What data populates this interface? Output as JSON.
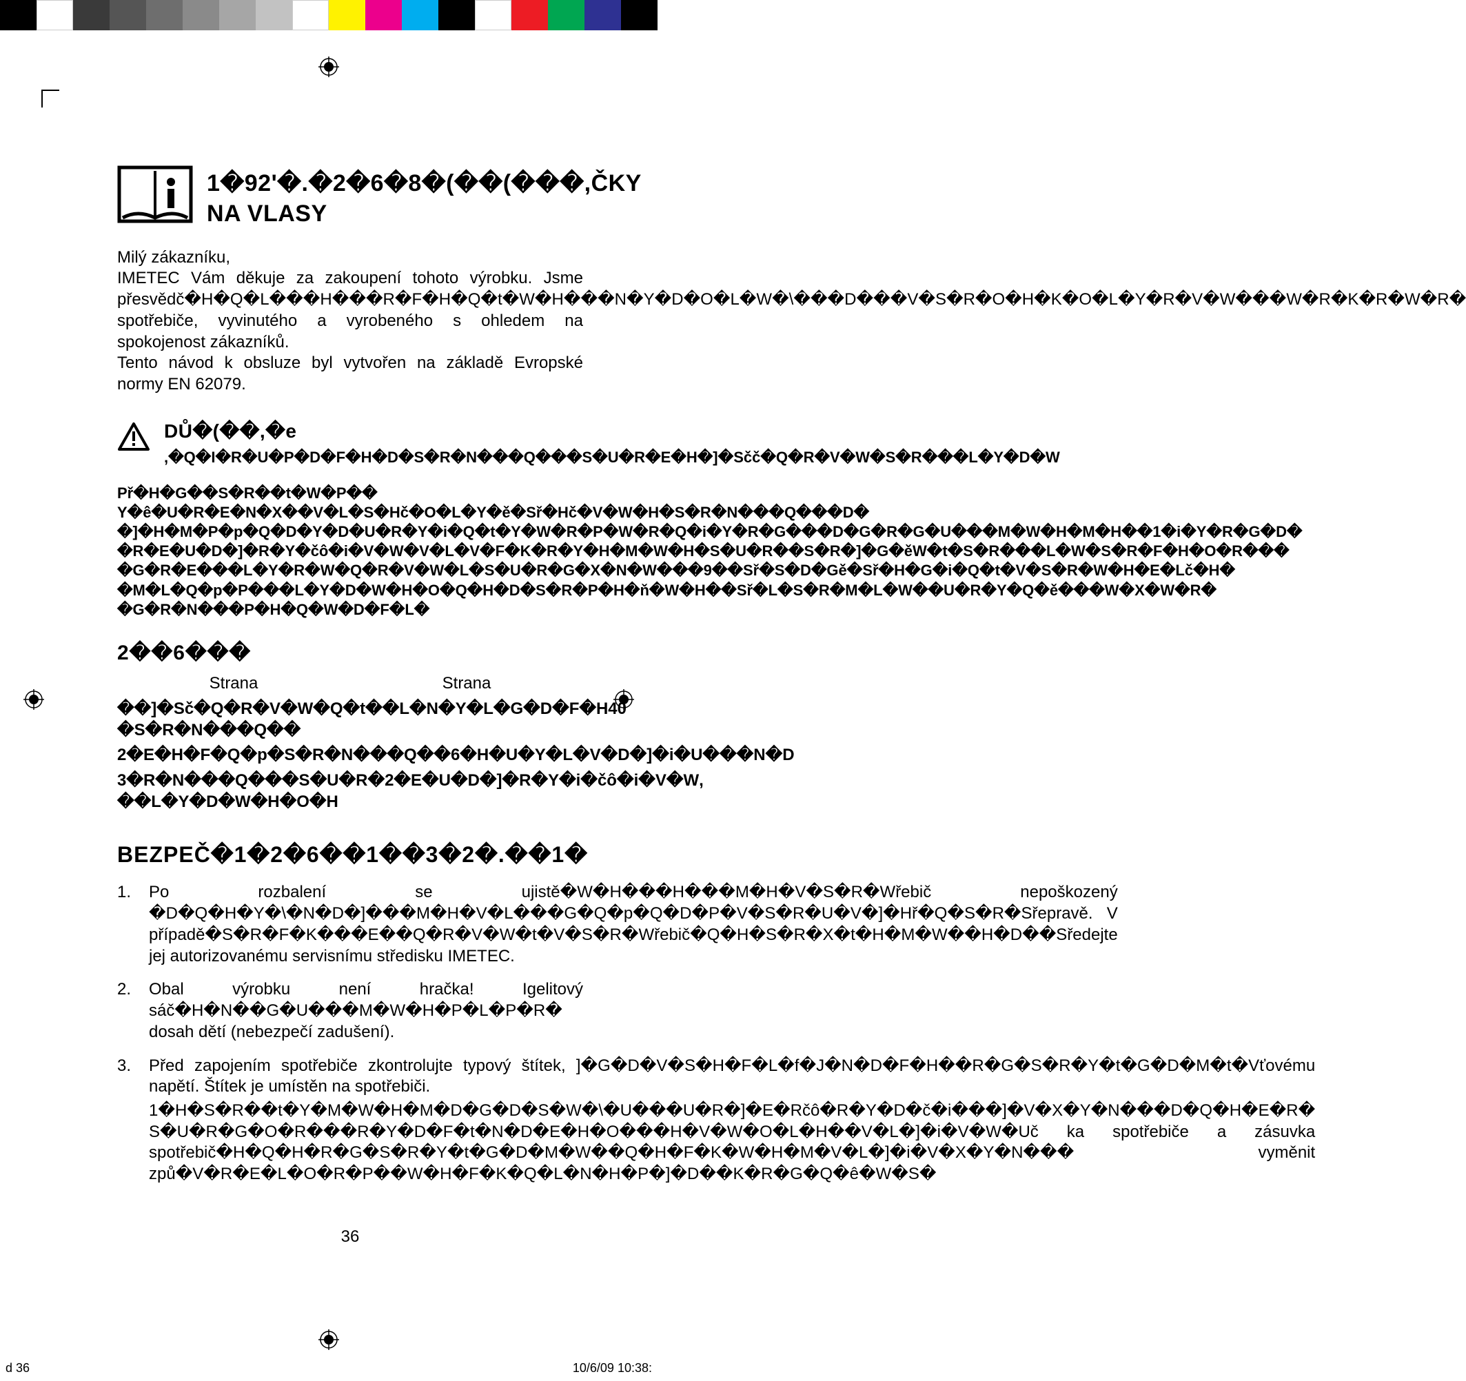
{
  "colorbar": [
    "#000000",
    "#ffffff",
    "#3a3a3a",
    "#555555",
    "#6e6e6e",
    "#8a8a8a",
    "#a6a6a6",
    "#c2c2c2",
    "#ffffff",
    "#fff200",
    "#ec008c",
    "#00adef",
    "#000000",
    "#ffffff",
    "#ed1c24",
    "#00a651",
    "#2e3192",
    "#000000"
  ],
  "title": "1�92'�.�2�6�8�(��(���,ČKY NA VLASY",
  "intro_p1": "Milý zákazníku,",
  "intro_p2": "IMETEC  Vám  děkuje  za  zakoupení  tohoto  výrobku.  Jsme přesvědč�H�Q�L���H���R�F�H�Q�t�W�H���N�Y�D�O�L�W�\\���D���V�S�R�O�H�K�O�L�Y�R�V�W���W�R�K�R�W�R� spotřebiče,  vyvinutého  a  vyrobeného  s  ohledem  na spokojenost zákazníků.",
  "intro_p3": "Tento  návod  k  obsluze  byl  vytvořen  na  základě  Evropské normy EN 62079.",
  "warn_head": "DŮ�(��,�e",
  "warn_sub": ",�Q�I�R�U�P�D�F�H�D�S�R�N���Q���S�U�R�E�H�]�Sčč�Q�R�V�W�S�R���L�Y�D�W",
  "warn_body": "Př�H�G��S�R��t�W�P�� Y�ê�U�R�E�N�X��V�L�S�Hč�O�L�Y�ě�Sř�Hč�V�W�H�S�R�N���Q���D� �]�H�M�P�p�Q�D�Y�D�U�R�Y�i�Q�t�Y�W�R�P�W�R�Q�i�Y�R�G���D�G�R�G�U���M�W�H�M�H��1�i�Y�R�G�D� �R�E�U�D�]�R�Y�čô�i�V�W�V�L�V�F�K�R�Y�H�M�W�H�S�U�R��S�R�]�G�ěW�t�S�R���L�W�S�R�F�H�O�R��� �G�R�E���L�Y�R�W�Q�R�V�W�L�S�U�R�G�X�N�W���9��Sř�S�D�Gě�Sř�H�G�i�Q�t�V�S�R�W�H�E�Lč�H� �M�L�Q�p�P���L�Y�D�W�H�O�Q�H�D�S�R�P�H�ň�W�H��Sř�L�S�R�M�L�W��U�R�Y�Q�ě���W�X�W�R� �G�R�N���P�H�Q�W�D�F�L�",
  "obsah_h": "2��6���",
  "toc_head_l": "Strana",
  "toc_head_r": "Strana",
  "toc": [
    {
      "l": "��]�Sč�Q�R�V�W�Q�t� �S�R�N���Q��",
      "r": "�L�N�Y�L�G�D�F�H",
      "rn": "40"
    },
    {
      "l": "2�E�H�F�Q�p�S�R�N���Q��",
      "r": "6�H�U�Y�L�V�D�]�i�U���N�D",
      "rn": ""
    },
    {
      "l": "3�R�N���Q���S�U�R� ��L�Y�D�W�H�O�H",
      "r": "2�E�U�D�]�R�Y�i�čô�i�V�W",
      "rn": ","
    }
  ],
  "section_h": "BEZPEČ�1�2�6��1��3�2�.��1�",
  "list": [
    {
      "n": "1.",
      "t": [
        "Po  rozbalení  se  ujistě�W�H���H���M�H�V�S�R�Wřebič  nepoškozený �D�Q�H�Y�\\�N�D�]���M�H�V�L���G�Q�p�Q�D�P�V�S�R�U�V�]�Hř�Q�S�R�Sřepravě. V případě�S�R�F�K���E��Q�R�V�W�t�V�S�R�Wřebič�Q�H�S�R�X�t�H�M�W��H�D��Sředejte jej autorizovanému servisnímu středisku IMETEC."
      ]
    },
    {
      "n": "2.",
      "t": [
        "Obal výrobku není hračka! Igelitový sáč�H�N��G�U���M�W�H�P�L�P�R� dosah dětí (nebezpečí zadušení)."
      ]
    },
    {
      "n": "3.",
      "t": [
        "Před  zapojením  spotřebiče  zkontrolujte  typový  štítek, ]�G�D�V�S�H�F�L�f�J�N�D�F�H��R�G�S�R�Y�t�G�D�M�t�Vťovému  napětí.  Štítek  je umístěn na spotřebiči.",
        "1�H�S�R��t�Y�M�W�H�M�D�G�D�S�W�\\�U���U�R�]�E�Rčô�R�Y�D�č�i���]�V�X�Y�N���D�Q�H�E�R� S�U�R�G�O�R���R�Y�D�F�t�N�D�E�H�O���H�V�W�O�L�H��V�L�]�i�V�W�Uč ka  spotřebiče  a zásuvka  spotřebič�H�Q�H�R�G�S�R�Y�t�G�D�M�W��Q�H�F�K�W�H�M�V�L�]�i�V�X�Y�N��� vyměnit způ�V�R�E�L�O�R�P��W�H�F�K�Q�L�N�H�P�]�D��K�R�G�Q�ê�W�S�"
      ]
    }
  ],
  "page_num": "36",
  "footer_l": "d   36",
  "footer_r": "10/6/09   10:38:"
}
